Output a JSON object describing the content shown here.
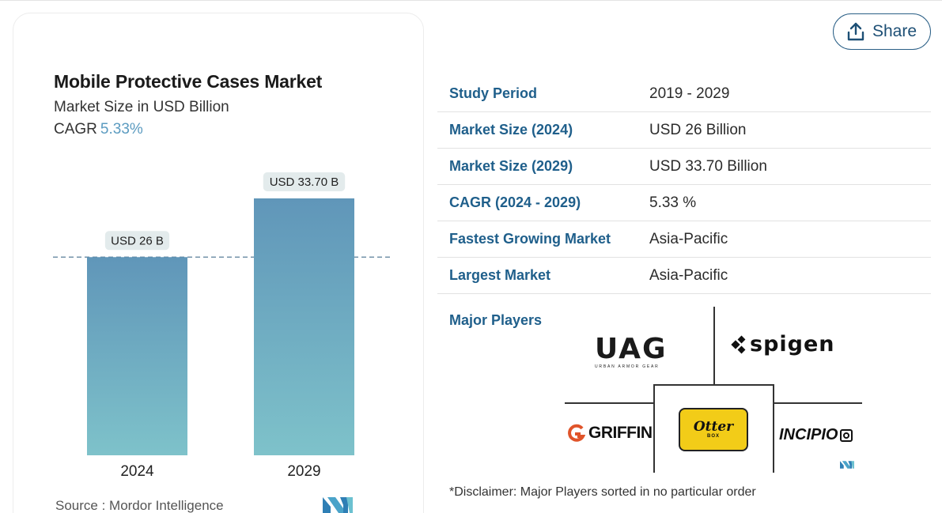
{
  "share": {
    "label": "Share"
  },
  "chart_data": {
    "type": "bar",
    "title": "Mobile Protective Cases Market",
    "subtitle": "Market Size in USD Billion",
    "cagr_label": "CAGR",
    "cagr_value": "5.33%",
    "categories": [
      "2024",
      "2029"
    ],
    "values": [
      26,
      33.7
    ],
    "data_labels": [
      "USD 26 B",
      "USD 33.70 B"
    ],
    "ylim": [
      0,
      40
    ],
    "grid": false,
    "reference_line_value": 26,
    "colors": {
      "bar_top": "#6096b9",
      "bar_bottom": "#7ec2ca",
      "label_bg": "#e3ebec",
      "ref_line": "#5a7f99"
    }
  },
  "source": {
    "text": "Source :  Mordor Intelligence"
  },
  "info_table": [
    {
      "label": "Study Period",
      "value": "2019 - 2029"
    },
    {
      "label": "Market Size (2024)",
      "value": "USD 26 Billion"
    },
    {
      "label": "Market Size (2029)",
      "value": "USD 33.70 Billion"
    },
    {
      "label": "CAGR (2024 - 2029)",
      "value": "5.33 %"
    },
    {
      "label": "Fastest Growing Market",
      "value": "Asia-Pacific"
    },
    {
      "label": "Largest Market",
      "value": "Asia-Pacific"
    }
  ],
  "major_players": {
    "title": "Major Players",
    "uag": {
      "name": "UAG",
      "sub": "URBAN ARMOR GEAR"
    },
    "spigen": {
      "name": "spigen"
    },
    "griffin": {
      "name": "GRIFFIN"
    },
    "otterbox": {
      "name": "Otter",
      "sub": "BOX"
    },
    "incipio": {
      "name": "INCIPIO"
    }
  },
  "disclaimer": "*Disclaimer: Major Players sorted in no particular order",
  "icons": {
    "share": "upload-icon",
    "brand": "mordor-logo-icon"
  }
}
